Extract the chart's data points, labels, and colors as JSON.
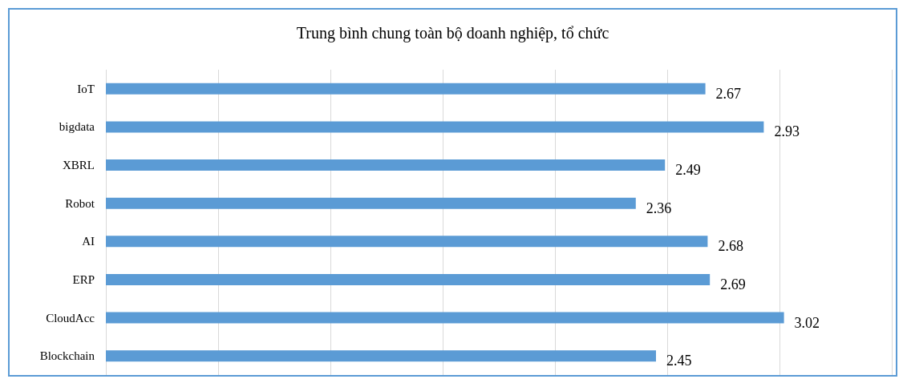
{
  "chart_data": {
    "type": "bar",
    "orientation": "horizontal",
    "title": "Trung bình chung toàn bộ doanh nghiệp, tổ chức",
    "categories": [
      "IoT",
      "bigdata",
      "XBRL",
      "Robot",
      "AI",
      "ERP",
      "CloudAcc",
      "Blockchain"
    ],
    "values": [
      2.67,
      2.93,
      2.49,
      2.36,
      2.68,
      2.69,
      3.02,
      2.45
    ],
    "color": "#5b9bd5",
    "data_labels": true,
    "grid": "x",
    "tick_labels": "y",
    "xlim": [
      0,
      3.5
    ],
    "xticks": [
      {
        "value": 0,
        "label": null
      },
      {
        "value": 0.5,
        "label": null
      },
      {
        "value": 1,
        "label": null
      },
      {
        "value": 1.5,
        "label": null
      },
      {
        "value": 2,
        "label": null
      },
      {
        "value": 2.5,
        "label": null
      },
      {
        "value": 3,
        "label": null
      },
      {
        "value": 3.5,
        "label": null
      }
    ]
  }
}
